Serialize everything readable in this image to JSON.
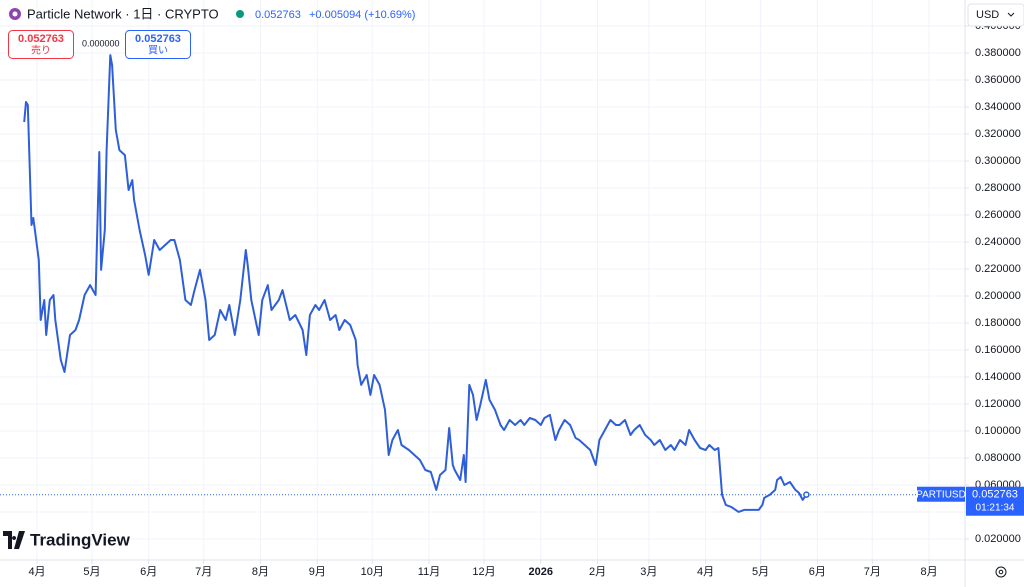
{
  "header": {
    "symbol": "Particle Network · 1日 · CRYPTO",
    "price": "0.052763",
    "change": "+0.005094 (+10.69%)"
  },
  "trade": {
    "sell_price": "0.052763",
    "sell_label": "売り",
    "spread": "0.000000",
    "buy_price": "0.052763",
    "buy_label": "買い"
  },
  "currency": "USD",
  "price_tag": {
    "symbol": "PARTIUSD",
    "countdown": "01:21:34"
  },
  "logo": "TradingView",
  "chart_data": {
    "type": "line",
    "last_value": 0.052763,
    "xlim": [
      -20.2,
      506.6
    ],
    "xticks": [
      {
        "value": 0,
        "label": "4月"
      },
      {
        "value": 30,
        "label": "5月"
      },
      {
        "value": 61,
        "label": "6月"
      },
      {
        "value": 91,
        "label": "7月"
      },
      {
        "value": 122,
        "label": "8月"
      },
      {
        "value": 153,
        "label": "9月"
      },
      {
        "value": 183,
        "label": "10月"
      },
      {
        "value": 214,
        "label": "11月"
      },
      {
        "value": 244,
        "label": "12月"
      },
      {
        "value": 275,
        "label": "2026"
      },
      {
        "value": 306,
        "label": "2月"
      },
      {
        "value": 334,
        "label": "3月"
      },
      {
        "value": 365,
        "label": "4月"
      },
      {
        "value": 395,
        "label": "5月"
      },
      {
        "value": 426,
        "label": "6月"
      },
      {
        "value": 456,
        "label": "7月"
      },
      {
        "value": 487,
        "label": "8月"
      }
    ],
    "ylim": [
      0.0044,
      0.4193
    ],
    "yticks": [
      {
        "value": 0.02,
        "label": "0.020000"
      },
      {
        "value": 0.04,
        "label": "0.040000"
      },
      {
        "value": 0.06,
        "label": "0.060000"
      },
      {
        "value": 0.08,
        "label": "0.080000"
      },
      {
        "value": 0.1,
        "label": "0.100000"
      },
      {
        "value": 0.12,
        "label": "0.120000"
      },
      {
        "value": 0.14,
        "label": "0.140000"
      },
      {
        "value": 0.16,
        "label": "0.160000"
      },
      {
        "value": 0.18,
        "label": "0.180000"
      },
      {
        "value": 0.2,
        "label": "0.200000"
      },
      {
        "value": 0.22,
        "label": "0.220000"
      },
      {
        "value": 0.24,
        "label": "0.240000"
      },
      {
        "value": 0.26,
        "label": "0.260000"
      },
      {
        "value": 0.28,
        "label": "0.280000"
      },
      {
        "value": 0.3,
        "label": "0.300000"
      },
      {
        "value": 0.32,
        "label": "0.320000"
      },
      {
        "value": 0.34,
        "label": "0.340000"
      },
      {
        "value": 0.36,
        "label": "0.360000"
      },
      {
        "value": 0.38,
        "label": "0.380000"
      },
      {
        "value": 0.4,
        "label": "0.400000"
      }
    ],
    "grid": true,
    "series": [
      {
        "color": "#2f5fd8",
        "x": [
          -7,
          -6,
          -5,
          -3,
          -2,
          1,
          2,
          4,
          5,
          7,
          9,
          10,
          13,
          15,
          18,
          21,
          23,
          26,
          29,
          32,
          34,
          35,
          37,
          38,
          40,
          41,
          43,
          45,
          48,
          50,
          52,
          53,
          56,
          59,
          61,
          64,
          67,
          70,
          73,
          75,
          78,
          81,
          84,
          86,
          89,
          92,
          94,
          97,
          100,
          103,
          105,
          108,
          111,
          114,
          115,
          117,
          121,
          123,
          126,
          128,
          132,
          134,
          138,
          141,
          145,
          147,
          149,
          152,
          154,
          157,
          160,
          163,
          165,
          168,
          171,
          174,
          175,
          177,
          180,
          182,
          184,
          187,
          190,
          192,
          194,
          197,
          199,
          203,
          206,
          209,
          212,
          215,
          218,
          220,
          223,
          225,
          227,
          228,
          231,
          233,
          234,
          236,
          238,
          240,
          242,
          245,
          247,
          250,
          253,
          255,
          258,
          261,
          264,
          266,
          269,
          272,
          275,
          277,
          280,
          283,
          285,
          288,
          291,
          294,
          296,
          299,
          302,
          305,
          307,
          310,
          313,
          316,
          318,
          321,
          324,
          326,
          329,
          332,
          335,
          337,
          340,
          343,
          346,
          348,
          351,
          354,
          356,
          359,
          362,
          365,
          367,
          370,
          372,
          374,
          376,
          379,
          383,
          386,
          390,
          394,
          396,
          397,
          400,
          403,
          404,
          406,
          408,
          411,
          414,
          416,
          418,
          420
        ],
        "values": [
          0.3289,
          0.3437,
          0.3415,
          0.2526,
          0.2578,
          0.2267,
          0.1822,
          0.197,
          0.1711,
          0.197,
          0.2007,
          0.1822,
          0.1526,
          0.1437,
          0.1711,
          0.1748,
          0.1822,
          0.2007,
          0.2081,
          0.2007,
          0.3067,
          0.2193,
          0.2489,
          0.3081,
          0.3785,
          0.3711,
          0.323,
          0.3081,
          0.3044,
          0.2785,
          0.2859,
          0.2711,
          0.2489,
          0.2304,
          0.2156,
          0.2415,
          0.2341,
          0.2378,
          0.2415,
          0.2415,
          0.2267,
          0.197,
          0.1933,
          0.2044,
          0.2193,
          0.197,
          0.1674,
          0.1711,
          0.1896,
          0.1822,
          0.1933,
          0.1711,
          0.197,
          0.2341,
          0.223,
          0.197,
          0.1711,
          0.197,
          0.2081,
          0.1896,
          0.197,
          0.2044,
          0.1822,
          0.1859,
          0.1748,
          0.1563,
          0.1859,
          0.1933,
          0.1896,
          0.197,
          0.1822,
          0.1859,
          0.1748,
          0.1822,
          0.1785,
          0.1674,
          0.1489,
          0.1341,
          0.1415,
          0.1267,
          0.1415,
          0.1341,
          0.1156,
          0.0822,
          0.0933,
          0.1007,
          0.0896,
          0.0859,
          0.0822,
          0.0785,
          0.0711,
          0.0696,
          0.0563,
          0.0674,
          0.0711,
          0.1022,
          0.0748,
          0.0711,
          0.0637,
          0.0822,
          0.0622,
          0.1341,
          0.1267,
          0.1081,
          0.1193,
          0.1378,
          0.123,
          0.1156,
          0.1044,
          0.1007,
          0.1081,
          0.1044,
          0.1081,
          0.1044,
          0.1096,
          0.1081,
          0.1044,
          0.1096,
          0.1119,
          0.0933,
          0.1007,
          0.1081,
          0.1044,
          0.0948,
          0.0933,
          0.0896,
          0.0859,
          0.0748,
          0.0933,
          0.1007,
          0.1081,
          0.1044,
          0.1044,
          0.1081,
          0.097,
          0.1007,
          0.1044,
          0.097,
          0.0933,
          0.0896,
          0.0933,
          0.0859,
          0.0896,
          0.0859,
          0.0933,
          0.0896,
          0.1007,
          0.0933,
          0.0874,
          0.0859,
          0.0896,
          0.0859,
          0.0874,
          0.0526,
          0.0452,
          0.0437,
          0.04,
          0.0415,
          0.0415,
          0.0415,
          0.0452,
          0.0504,
          0.0526,
          0.0563,
          0.0637,
          0.0659,
          0.06,
          0.0622,
          0.0563,
          0.0541,
          0.0489,
          0.0528
        ]
      }
    ]
  }
}
